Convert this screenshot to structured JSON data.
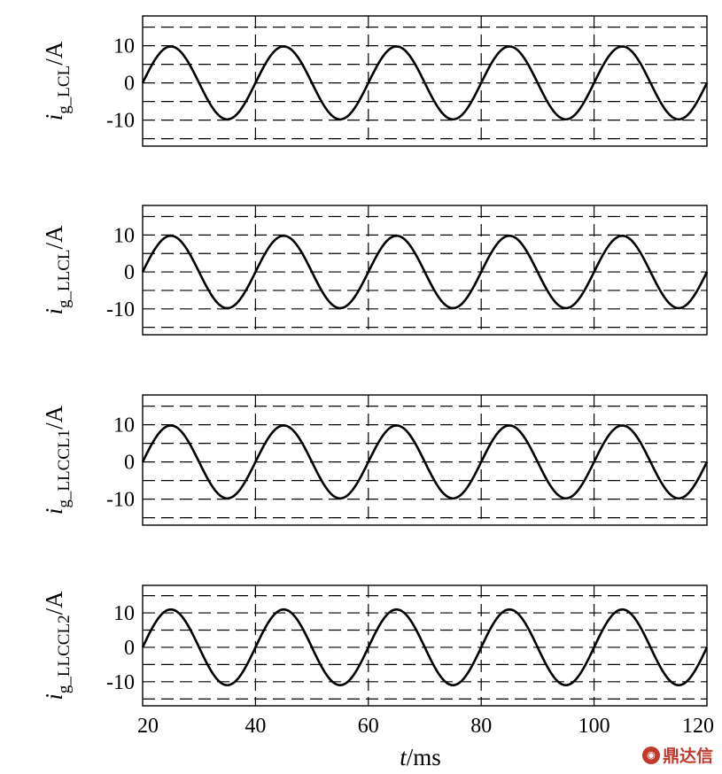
{
  "chart_data": {
    "type": "line",
    "x_label": "t/ms",
    "x_label_parts": {
      "italic": "t",
      "rest": "/ms"
    },
    "xlim": [
      20,
      120
    ],
    "x_ticks": [
      20,
      40,
      60,
      80,
      100,
      120
    ],
    "x_tick_labels": [
      "20",
      "40",
      "60",
      "80",
      "100",
      "120"
    ],
    "grid": "dashed",
    "panels": [
      {
        "ylabel": {
          "main": "i",
          "sub": "g_LCL",
          "unit": "/A"
        },
        "ylim": [
          -17,
          18
        ],
        "y_ticks": [
          -10,
          0,
          10
        ],
        "y_tick_labels": [
          "-10",
          "0",
          "10"
        ],
        "y_gridlines": [
          -15,
          -10,
          -5,
          0,
          5,
          10,
          15
        ],
        "x": [
          20,
          25,
          30,
          35,
          40,
          45,
          50,
          55,
          60,
          65,
          70,
          75,
          80,
          85,
          90,
          95,
          100,
          105,
          110,
          115,
          120
        ],
        "y": [
          0,
          9.8,
          0,
          -9.8,
          0,
          9.8,
          0,
          -9.8,
          0,
          9.8,
          0,
          -9.8,
          0,
          9.8,
          0,
          -9.8,
          0,
          9.8,
          0,
          -9.8,
          0
        ]
      },
      {
        "ylabel": {
          "main": "i",
          "sub": "g_LLCL",
          "unit": "/A"
        },
        "ylim": [
          -17,
          18
        ],
        "y_ticks": [
          -10,
          0,
          10
        ],
        "y_tick_labels": [
          "-10",
          "0",
          "10"
        ],
        "y_gridlines": [
          -15,
          -10,
          -5,
          0,
          5,
          10,
          15
        ],
        "x": [
          20,
          25,
          30,
          35,
          40,
          45,
          50,
          55,
          60,
          65,
          70,
          75,
          80,
          85,
          90,
          95,
          100,
          105,
          110,
          115,
          120
        ],
        "y": [
          0,
          9.8,
          0,
          -9.8,
          0,
          9.8,
          0,
          -9.8,
          0,
          9.8,
          0,
          -9.8,
          0,
          9.8,
          0,
          -9.8,
          0,
          9.8,
          0,
          -9.8,
          0
        ]
      },
      {
        "ylabel": {
          "main": "i",
          "sub": "g_LLCCL1",
          "unit": "/A"
        },
        "ylim": [
          -17,
          18
        ],
        "y_ticks": [
          -10,
          0,
          10
        ],
        "y_tick_labels": [
          "-10",
          "0",
          "10"
        ],
        "y_gridlines": [
          -15,
          -10,
          -5,
          0,
          5,
          10,
          15
        ],
        "x": [
          20,
          25,
          30,
          35,
          40,
          45,
          50,
          55,
          60,
          65,
          70,
          75,
          80,
          85,
          90,
          95,
          100,
          105,
          110,
          115,
          120
        ],
        "y": [
          0,
          9.8,
          0,
          -9.8,
          0,
          9.8,
          0,
          -9.8,
          0,
          9.8,
          0,
          -9.8,
          0,
          9.8,
          0,
          -9.8,
          0,
          9.8,
          0,
          -9.8,
          0
        ]
      },
      {
        "ylabel": {
          "main": "i",
          "sub": "g_LLCCL2",
          "unit": "/A"
        },
        "ylim": [
          -17,
          18
        ],
        "y_ticks": [
          -10,
          0,
          10
        ],
        "y_tick_labels": [
          "-10",
          "0",
          "10"
        ],
        "y_gridlines": [
          -15,
          -10,
          -5,
          0,
          5,
          10,
          15
        ],
        "x": [
          20,
          25,
          30,
          35,
          40,
          45,
          50,
          55,
          60,
          65,
          70,
          75,
          80,
          85,
          90,
          95,
          100,
          105,
          110,
          115,
          120
        ],
        "y": [
          0,
          11,
          0,
          -11,
          0,
          11,
          0,
          -11,
          0,
          11,
          0,
          -11,
          0,
          11,
          0,
          -11,
          0,
          11,
          0,
          -11,
          0
        ]
      }
    ]
  },
  "watermark": {
    "text": "鼎达信",
    "icon": "logo-icon"
  }
}
